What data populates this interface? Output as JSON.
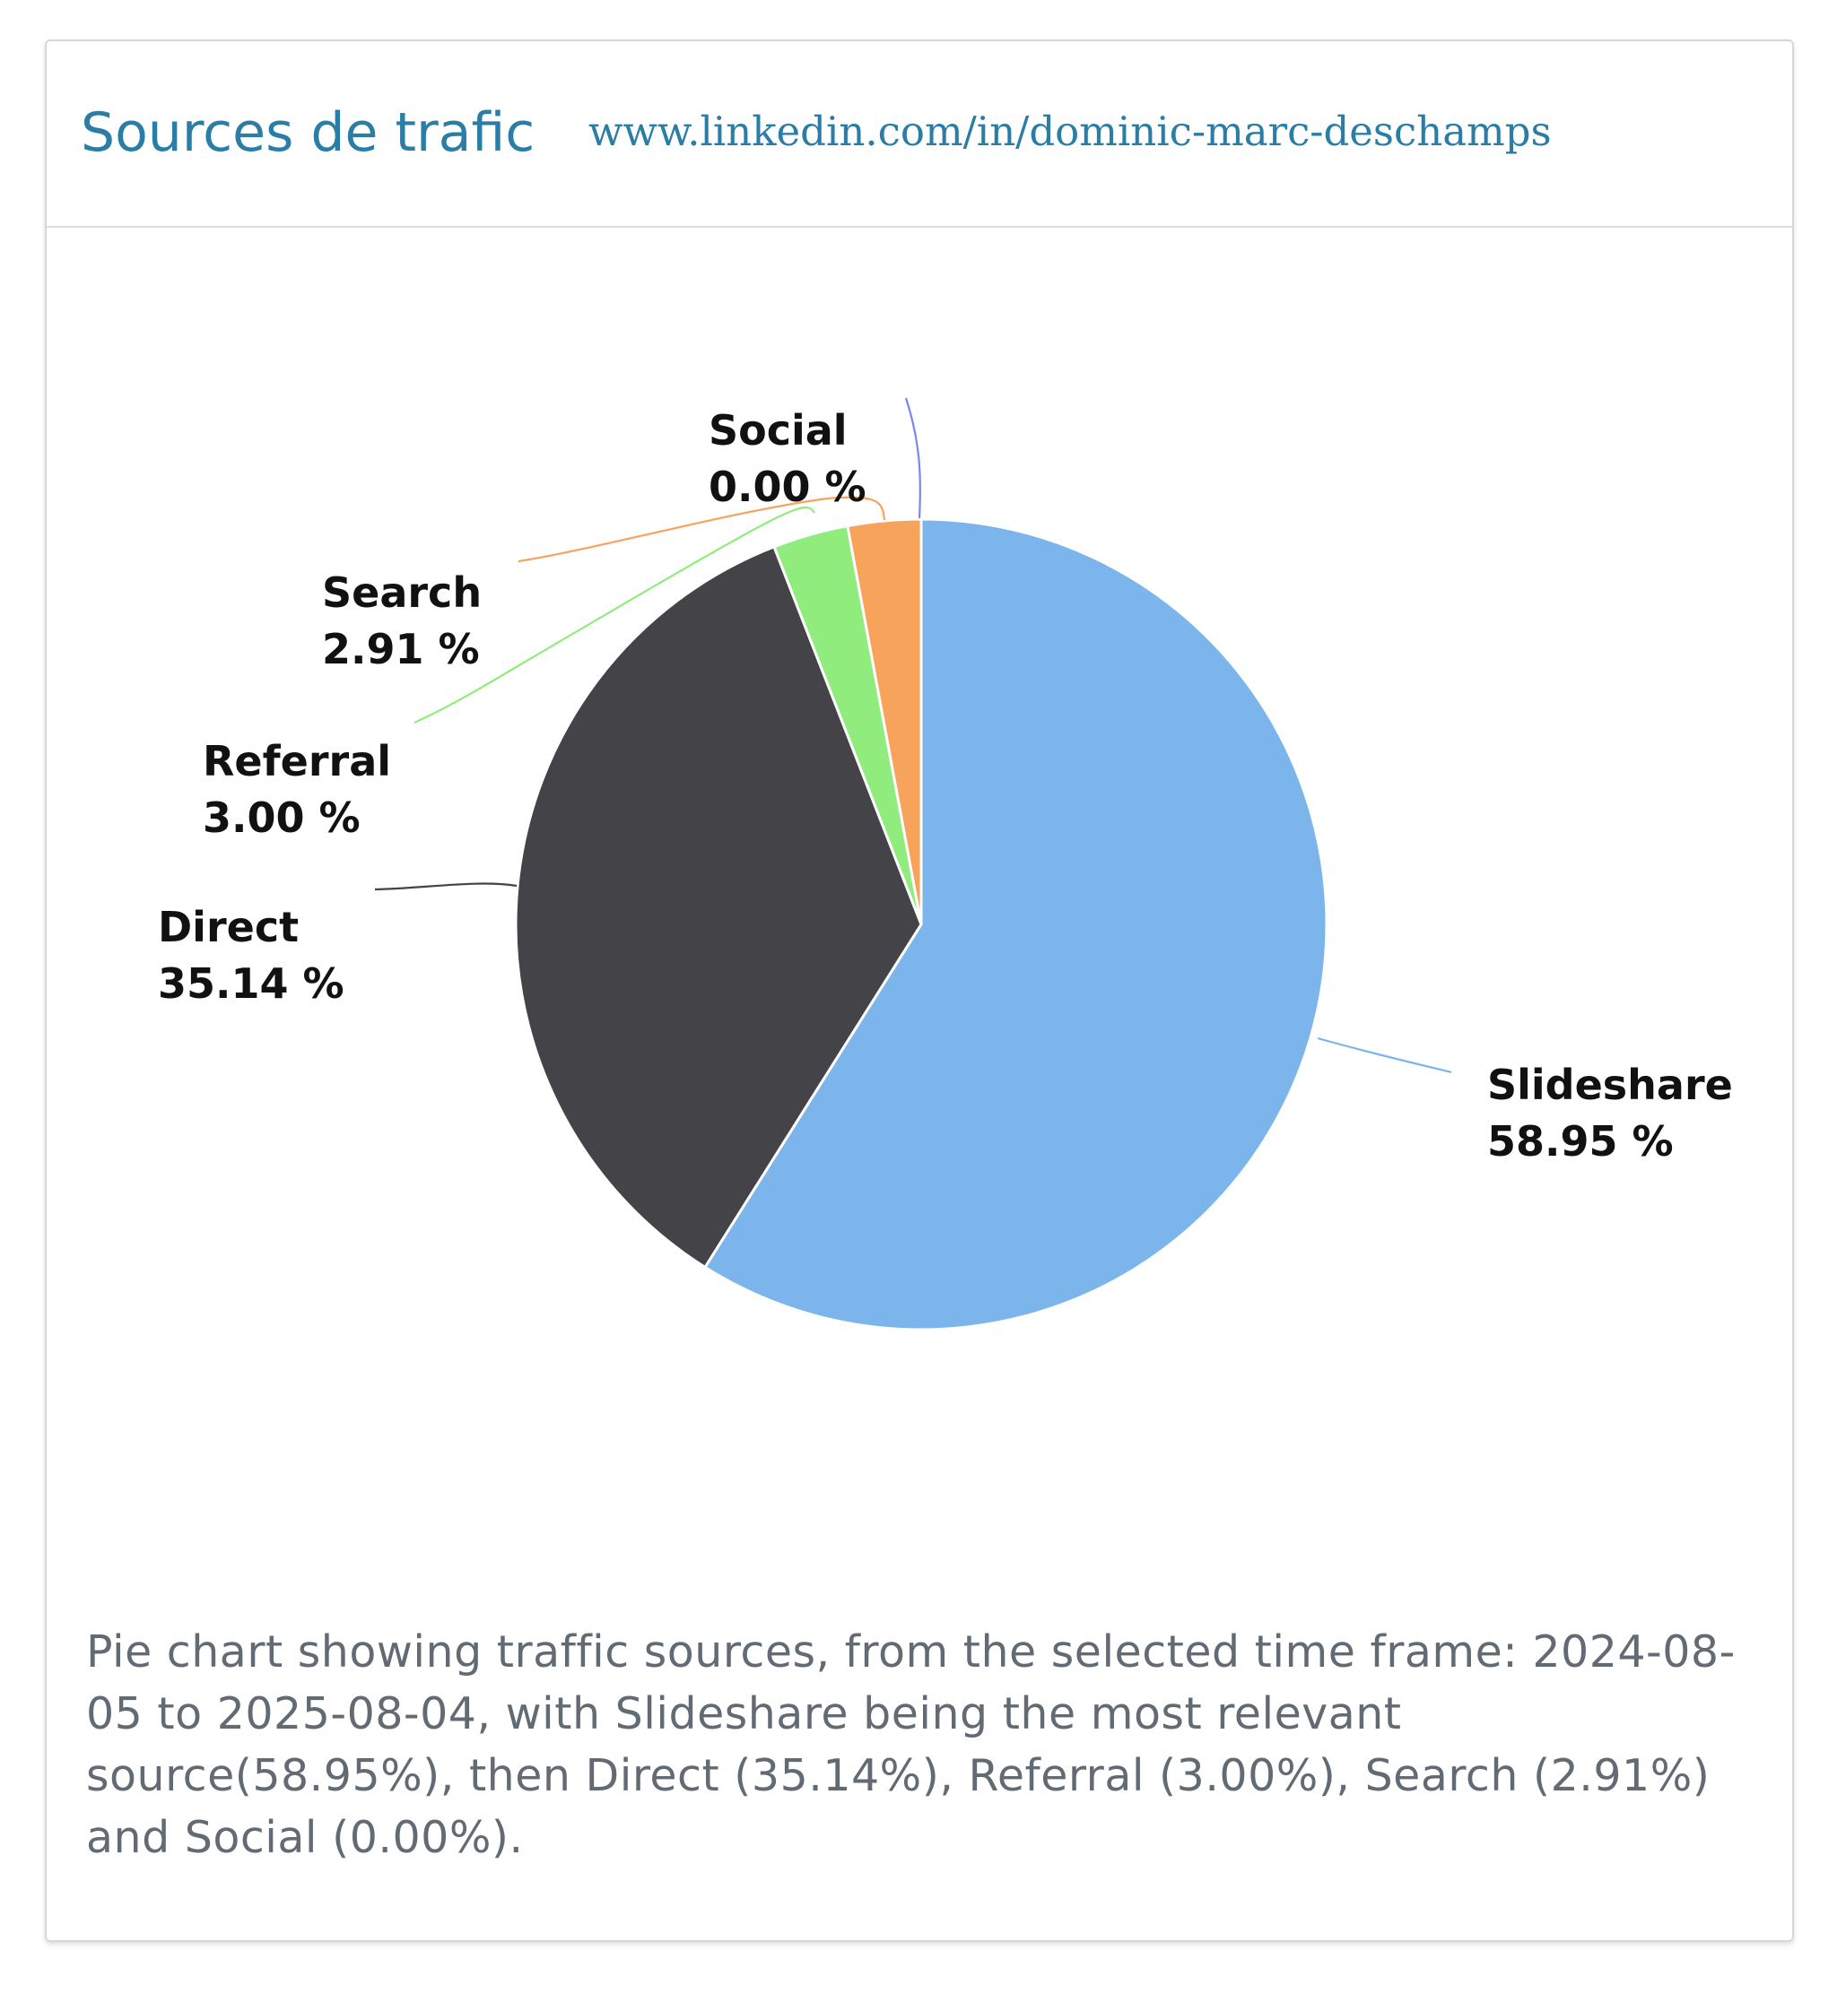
{
  "header": {
    "title": "Sources de trafic",
    "url": "www.linkedin.com/in/dominic-marc-deschamps"
  },
  "chart_data": {
    "type": "pie",
    "start_angle_deg": 0,
    "direction": "clockwise",
    "slices": [
      {
        "name": "Slideshare",
        "label": "58.95 %",
        "value": 58.95,
        "color": "#7cb5ec"
      },
      {
        "name": "Direct",
        "label": "35.14 %",
        "value": 35.14,
        "color": "#434348"
      },
      {
        "name": "Referral",
        "label": "3.00 %",
        "value": 3.0,
        "color": "#90ed7d"
      },
      {
        "name": "Search",
        "label": "2.91 %",
        "value": 2.91,
        "color": "#f7a35c"
      },
      {
        "name": "Social",
        "label": "0.00 %",
        "value": 0.0,
        "color": "#8085e9"
      }
    ]
  },
  "caption": "Pie chart showing traffic sources, from the selected time frame: 2024-08-05 to 2025-08-04, with Slideshare being the most relevant source(58.95%), then Direct (35.14%), Referral (3.00%), Search (2.91%) and Social (0.00%)."
}
